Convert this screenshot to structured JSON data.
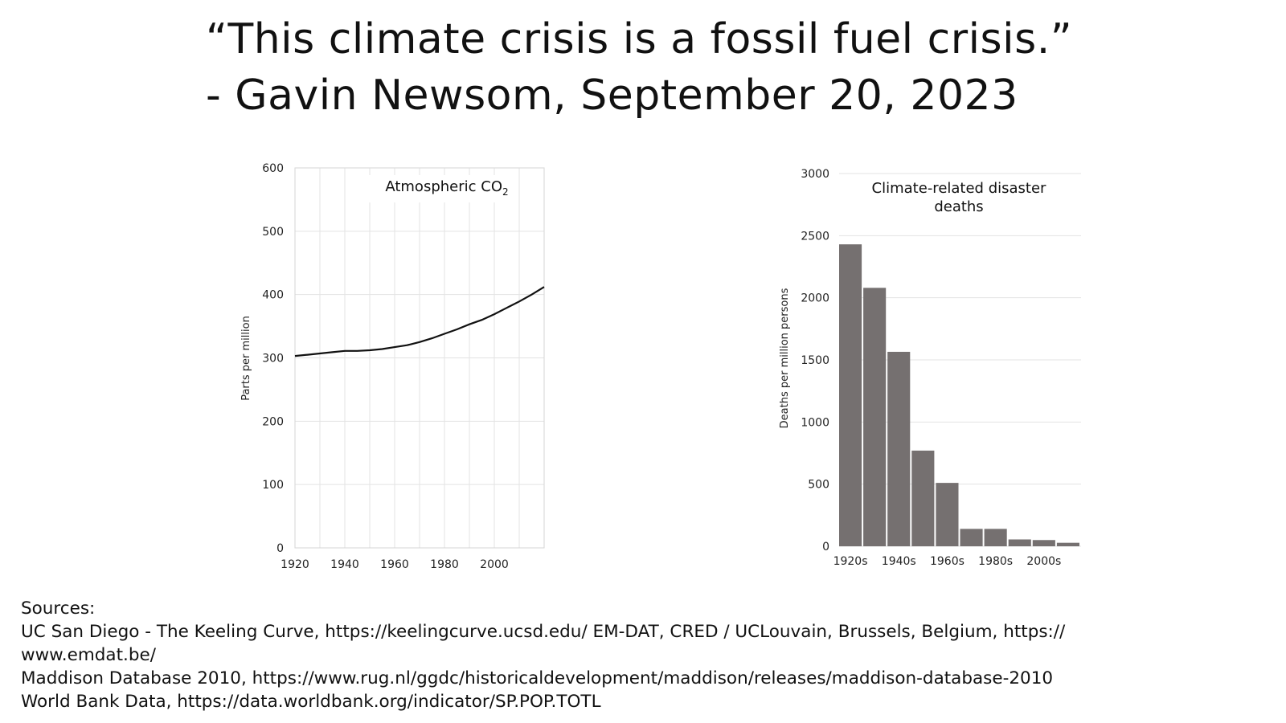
{
  "quote": {
    "line1": "“This climate crisis is a fossil fuel crisis.”",
    "line2": "- Gavin Newsom, September 20, 2023"
  },
  "chart_data": [
    {
      "type": "line",
      "title": "Atmospheric CO",
      "title_subscript": "2",
      "xlabel": "",
      "ylabel": "Parts per million",
      "xlim": [
        1920,
        2020
      ],
      "ylim": [
        0,
        600
      ],
      "xticks": [
        1920,
        1940,
        1960,
        1980,
        2000
      ],
      "yticks": [
        0,
        100,
        200,
        300,
        400,
        500,
        600
      ],
      "grid": true,
      "series": [
        {
          "x": [
            1920,
            1925,
            1930,
            1935,
            1940,
            1945,
            1950,
            1955,
            1960,
            1965,
            1970,
            1975,
            1980,
            1985,
            1990,
            1995,
            2000,
            2005,
            2010,
            2015,
            2020
          ],
          "values": [
            303,
            305,
            307,
            309,
            311,
            311,
            312,
            314,
            317,
            320,
            325,
            331,
            338,
            345,
            353,
            360,
            369,
            379,
            389,
            400,
            412
          ]
        }
      ]
    },
    {
      "type": "bar",
      "title": "Climate-related disaster deaths",
      "xlabel": "",
      "ylabel": "Deaths per million persons",
      "ylim": [
        0,
        3000
      ],
      "yticks": [
        0,
        500,
        1000,
        1500,
        2000,
        2500,
        3000
      ],
      "grid": true,
      "categories": [
        "1920s",
        "1930s",
        "1940s",
        "1950s",
        "1960s",
        "1970s",
        "1980s",
        "1990s",
        "2000s",
        "2010s"
      ],
      "shown_tick_labels": [
        "1920s",
        "1940s",
        "1960s",
        "1980s",
        "2000s"
      ],
      "values": [
        2430,
        2080,
        1565,
        770,
        510,
        140,
        140,
        55,
        50,
        28
      ],
      "bar_color": "#757070"
    }
  ],
  "sources": {
    "heading": "Sources:",
    "line1": "UC San Diego - The Keeling Curve, https://keelingcurve.ucsd.edu/ EM-DAT, CRED / UCLouvain, Brussels, Belgium, https://",
    "line2": "www.emdat.be/",
    "line3": "Maddison Database 2010, https://www.rug.nl/ggdc/historicaldevelopment/maddison/releases/maddison-database-2010",
    "line4": "World Bank Data, https://data.worldbank.org/indicator/SP.POP.TOTL"
  }
}
